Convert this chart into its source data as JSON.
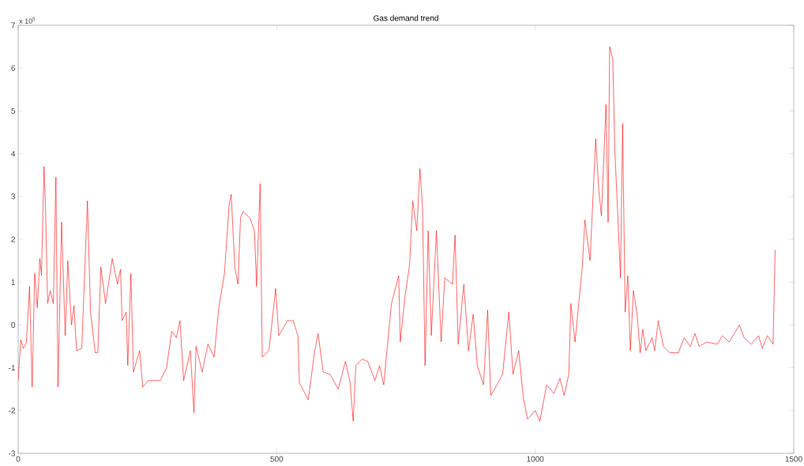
{
  "chart_data": {
    "type": "line",
    "title": "Gas demand trend",
    "annotations": [
      "x 10$^{5}$"
    ],
    "xlim": [
      0,
      1500
    ],
    "xticks": [
      0,
      500,
      1000,
      1500
    ],
    "ylim": [
      -3,
      7
    ],
    "yticks": [
      -3,
      -2,
      -1,
      0,
      1,
      2,
      3,
      4,
      5,
      6,
      7
    ],
    "grid": false,
    "legend": false,
    "marker": "none",
    "line_style": "solid",
    "series": [
      {
        "color": "#ff0000",
        "x": [
          0,
          5,
          10,
          16,
          22,
          27,
          32,
          37,
          42,
          45,
          50,
          53,
          57,
          62,
          68,
          73,
          77,
          84,
          91,
          96,
          103,
          108,
          113,
          123,
          134,
          140,
          149,
          154,
          160,
          169,
          182,
          192,
          198,
          201,
          209,
          212,
          218,
          223,
          235,
          241,
          252,
          275,
          287,
          297,
          306,
          313,
          320,
          333,
          340,
          344,
          356,
          367,
          379,
          388,
          399,
          408,
          412,
          419,
          425,
          430,
          435,
          448,
          457,
          461,
          468,
          472,
          485,
          498,
          504,
          521,
          532,
          541,
          544,
          561,
          573,
          580,
          590,
          603,
          619,
          633,
          642,
          648,
          653,
          665,
          676,
          690,
          699,
          707,
          716,
          722,
          736,
          739,
          748,
          757,
          763,
          771,
          777,
          782,
          787,
          793,
          799,
          809,
          818,
          825,
          840,
          845,
          851,
          862,
          871,
          880,
          888,
          900,
          908,
          914,
          926,
          937,
          949,
          957,
          968,
          977,
          985,
          1000,
          1009,
          1022,
          1036,
          1048,
          1056,
          1065,
          1069,
          1077,
          1091,
          1096,
          1106,
          1117,
          1123,
          1128,
          1137,
          1141,
          1144,
          1150,
          1154,
          1159,
          1165,
          1169,
          1174,
          1179,
          1184,
          1190,
          1197,
          1203,
          1208,
          1214,
          1226,
          1231,
          1238,
          1248,
          1260,
          1277,
          1288,
          1300,
          1309,
          1317,
          1332,
          1352,
          1362,
          1375,
          1395,
          1404,
          1418,
          1432,
          1439,
          1449,
          1460,
          1464
        ],
        "values": [
          -1.3,
          -0.35,
          -0.55,
          -0.4,
          0.9,
          -1.45,
          1.2,
          0.4,
          1.55,
          1.15,
          3.7,
          2.7,
          0.5,
          0.8,
          0.5,
          3.45,
          -1.45,
          2.4,
          -0.25,
          1.5,
          0,
          0.45,
          -0.6,
          -0.55,
          2.9,
          0.3,
          -0.65,
          -0.65,
          1.35,
          0.5,
          1.55,
          0.95,
          1.3,
          0.1,
          0.3,
          -0.95,
          1.2,
          -1.1,
          -0.6,
          -1.45,
          -1.3,
          -1.3,
          -1.0,
          -0.15,
          -0.3,
          0.1,
          -1.3,
          -0.6,
          -2.05,
          -0.5,
          -1.1,
          -0.45,
          -0.75,
          0.4,
          1.2,
          2.8,
          3.05,
          1.35,
          0.95,
          2.5,
          2.65,
          2.5,
          2.2,
          0.9,
          3.3,
          -0.75,
          -0.6,
          0.85,
          -0.25,
          0.1,
          0.1,
          -0.25,
          -1.35,
          -1.75,
          -0.65,
          -0.2,
          -1.1,
          -1.15,
          -1.5,
          -0.85,
          -1.35,
          -2.25,
          -0.95,
          -0.8,
          -0.85,
          -1.3,
          -0.95,
          -1.4,
          -0.25,
          0.5,
          1.15,
          -0.4,
          0.65,
          1.4,
          2.9,
          2.2,
          3.65,
          2.75,
          -0.95,
          2.2,
          -0.25,
          2.2,
          -0.4,
          1.1,
          0.95,
          2.1,
          -0.45,
          0.95,
          -0.6,
          0.25,
          -0.95,
          -1.4,
          0.35,
          -1.65,
          -1.4,
          -1.15,
          0.3,
          -1.15,
          -0.6,
          -1.7,
          -2.2,
          -2.0,
          -2.25,
          -1.4,
          -1.6,
          -1.25,
          -1.65,
          -1.15,
          0.5,
          -0.4,
          1.35,
          2.45,
          1.5,
          4.35,
          3.15,
          2.55,
          5.15,
          2.4,
          6.5,
          6.2,
          4.1,
          2.75,
          1.1,
          4.7,
          0.3,
          1.15,
          -0.6,
          0.8,
          0.25,
          -0.65,
          -0.1,
          -0.6,
          -0.3,
          -0.6,
          0.1,
          -0.5,
          -0.65,
          -0.65,
          -0.3,
          -0.5,
          -0.2,
          -0.5,
          -0.4,
          -0.45,
          -0.25,
          -0.4,
          0.0,
          -0.3,
          -0.45,
          -0.25,
          -0.55,
          -0.25,
          -0.45,
          1.75
        ]
      }
    ]
  }
}
